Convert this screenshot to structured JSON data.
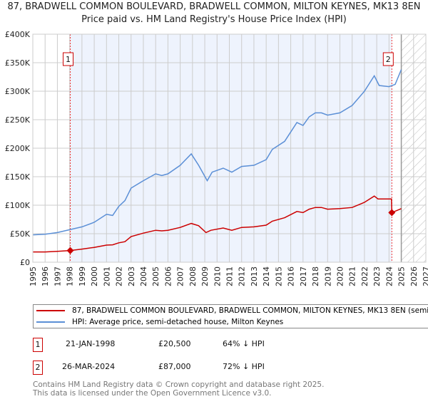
{
  "title": "87, BRADWELL COMMON BOULEVARD, BRADWELL COMMON, MILTON KEYNES, MK13 8EN",
  "subtitle": "Price paid vs. HM Land Registry's House Price Index (HPI)",
  "chart_data": {
    "type": "line",
    "xlim": [
      1995,
      2027
    ],
    "ylim": [
      0,
      400000
    ],
    "x_ticks": [
      "1995",
      "1996",
      "1997",
      "1998",
      "1999",
      "2000",
      "2001",
      "2002",
      "2003",
      "2004",
      "2005",
      "2006",
      "2007",
      "2008",
      "2009",
      "2010",
      "2011",
      "2012",
      "2013",
      "2014",
      "2015",
      "2016",
      "2017",
      "2018",
      "2019",
      "2020",
      "2021",
      "2022",
      "2023",
      "2024",
      "2025",
      "2026",
      "2027"
    ],
    "y_ticks": [
      {
        "v": 0,
        "label": "£0"
      },
      {
        "v": 50000,
        "label": "£50K"
      },
      {
        "v": 100000,
        "label": "£100K"
      },
      {
        "v": 150000,
        "label": "£150K"
      },
      {
        "v": 200000,
        "label": "£200K"
      },
      {
        "v": 250000,
        "label": "£250K"
      },
      {
        "v": 300000,
        "label": "£300K"
      },
      {
        "v": 350000,
        "label": "£350K"
      },
      {
        "v": 400000,
        "label": "£400K"
      }
    ],
    "forecast_start": 2025.0,
    "series": [
      {
        "name": "87, BRADWELL COMMON BOULEVARD, BRADWELL COMMON, MILTON KEYNES, MK13 8EN (semi-detached house)",
        "color": "#cc0000",
        "x": [
          1995,
          1996,
          1997,
          1998.05,
          1999,
          2000,
          2001,
          2001.5,
          2002,
          2002.5,
          2003,
          2004,
          2005,
          2005.5,
          2006,
          2007,
          2007.9,
          2008.5,
          2009.1,
          2009.5,
          2010.5,
          2011.2,
          2012,
          2013,
          2014,
          2014.5,
          2015.5,
          2016.5,
          2017,
          2017.5,
          2018,
          2018.5,
          2019,
          2020,
          2021,
          2022,
          2022.8,
          2023.1,
          2024.2,
          2024.23,
          2025.0
        ],
        "y": [
          18000,
          18000,
          19000,
          20500,
          23000,
          26000,
          30000,
          30500,
          34000,
          36000,
          45000,
          51000,
          56000,
          55000,
          56000,
          61000,
          68000,
          64000,
          52000,
          56000,
          60000,
          56000,
          61000,
          62000,
          65000,
          72000,
          78000,
          89000,
          87000,
          93000,
          96000,
          96000,
          93000,
          94000,
          96000,
          105000,
          116000,
          111000,
          111000,
          87000,
          94000
        ]
      },
      {
        "name": "HPI: Average price, semi-detached house, Milton Keynes",
        "color": "#5b8fd6",
        "x": [
          1995,
          1996,
          1997,
          1998,
          1999,
          2000,
          2001,
          2001.5,
          2002,
          2002.5,
          2003,
          2004,
          2005,
          2005.5,
          2006,
          2007,
          2007.9,
          2008.5,
          2009.2,
          2009.6,
          2010.5,
          2011.2,
          2012,
          2013,
          2014,
          2014.5,
          2015.5,
          2016.5,
          2017,
          2017.5,
          2018,
          2018.5,
          2019,
          2020,
          2021,
          2022,
          2022.8,
          2023.2,
          2024,
          2024.5,
          2025.0
        ],
        "y": [
          48000,
          49000,
          52000,
          57000,
          62000,
          70000,
          84000,
          82000,
          98000,
          108000,
          130000,
          143000,
          155000,
          152000,
          155000,
          170000,
          190000,
          170000,
          143000,
          158000,
          165000,
          158000,
          168000,
          170000,
          180000,
          198000,
          212000,
          245000,
          240000,
          255000,
          262000,
          262000,
          258000,
          262000,
          275000,
          300000,
          327000,
          310000,
          308000,
          312000,
          338000
        ]
      }
    ],
    "sales": [
      {
        "n": "1",
        "x": 1998.05,
        "y": 20500,
        "date": "21-JAN-1998",
        "price": "£20,500",
        "delta": "64% ↓ HPI"
      },
      {
        "n": "2",
        "x": 2024.23,
        "y": 87000,
        "date": "26-MAR-2024",
        "price": "£87,000",
        "delta": "72% ↓ HPI"
      }
    ]
  },
  "legend": {
    "red": "87, BRADWELL COMMON BOULEVARD, BRADWELL COMMON, MILTON KEYNES, MK13 8EN (semi-detached house)",
    "blue": "HPI: Average price, semi-detached house, Milton Keynes"
  },
  "footer": {
    "line1": "Contains HM Land Registry data © Crown copyright and database right 2025.",
    "line2": "This data is licensed under the Open Government Licence v3.0."
  }
}
